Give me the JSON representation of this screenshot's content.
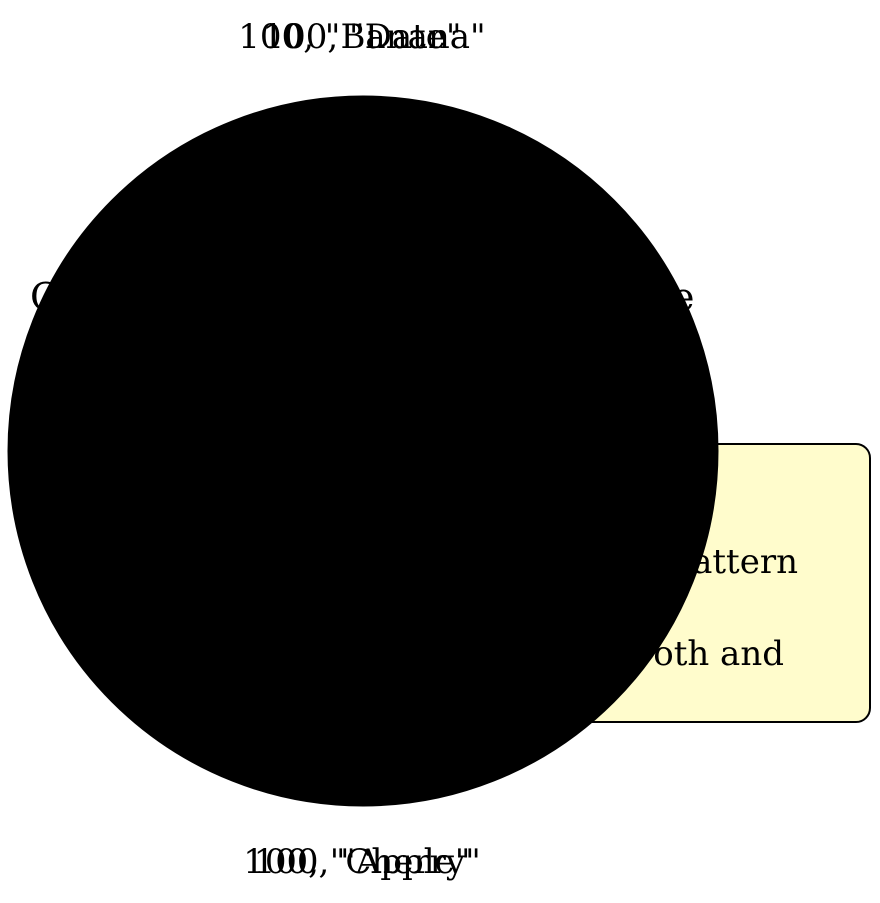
{
  "chart_data": {
    "type": "pie",
    "title": "",
    "slices": [
      {
        "label": "100, \"Banana\""
      },
      {
        "label": "100, \"Date\""
      },
      {
        "label": "100, \"Apple\""
      },
      {
        "label": "100, \"Cherry\""
      }
    ],
    "values": [
      100,
      100,
      100,
      100
    ],
    "legend": "none"
  },
  "colors": {
    "pie_fill": "#000000",
    "note_fill": "#fffccc",
    "note_stroke": "#000000"
  },
  "heading_fragments": {
    "left": "C",
    "right": "e"
  },
  "note": {
    "line1": "attern",
    "line2": "oth and"
  }
}
